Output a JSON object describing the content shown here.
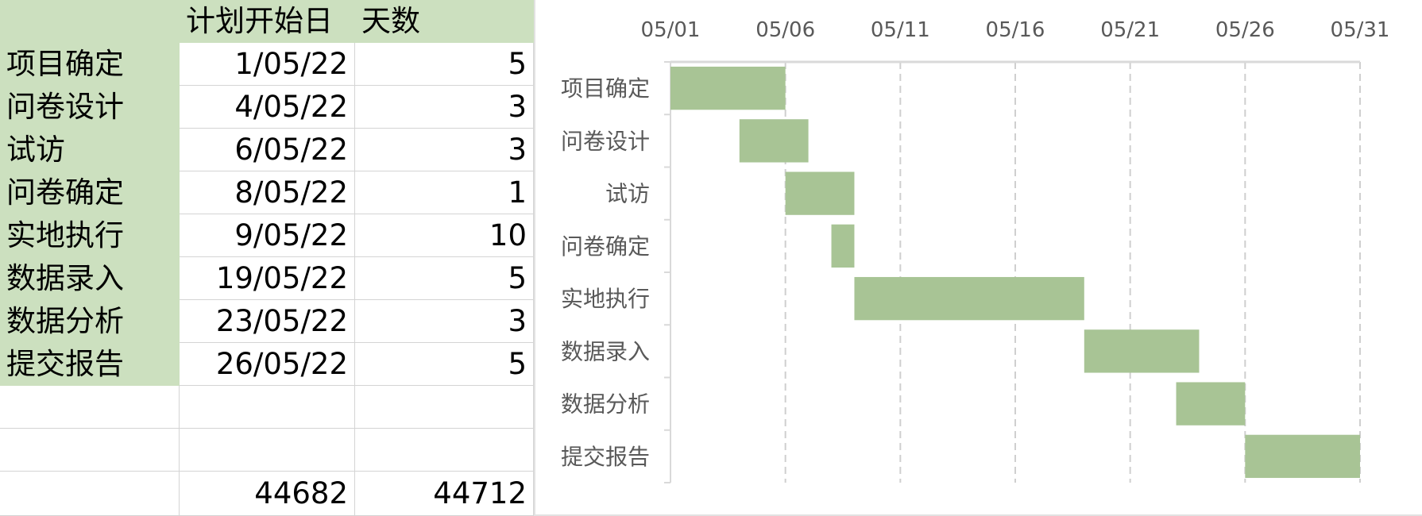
{
  "sheet": {
    "header": [
      "",
      "计划开始日",
      "天数"
    ],
    "rows": [
      {
        "task": "项目确定",
        "start": "1/05/22",
        "days": "5"
      },
      {
        "task": "问卷设计",
        "start": "4/05/22",
        "days": "3"
      },
      {
        "task": "试访",
        "start": "6/05/22",
        "days": "3"
      },
      {
        "task": "问卷确定",
        "start": "8/05/22",
        "days": "1"
      },
      {
        "task": "实地执行",
        "start": "9/05/22",
        "days": "10"
      },
      {
        "task": "数据录入",
        "start": "19/05/22",
        "days": "5"
      },
      {
        "task": "数据分析",
        "start": "23/05/22",
        "days": "3"
      },
      {
        "task": "提交报告",
        "start": "26/05/22",
        "days": "5"
      }
    ],
    "footer": {
      "start_serial": "44682",
      "end_serial": "44712"
    }
  },
  "colors": {
    "bar": "#a8c495",
    "header_bg": "#cce0bf",
    "grid": "#cfcfcf",
    "axis_text": "#595959"
  },
  "chart_data": {
    "type": "bar",
    "orientation": "horizontal-gantt",
    "categories": [
      "项目确定",
      "问卷设计",
      "试访",
      "问卷确定",
      "实地执行",
      "数据录入",
      "数据分析",
      "提交报告"
    ],
    "series": [
      {
        "role": "start",
        "hidden": true,
        "values": [
          "2022-05-01",
          "2022-05-04",
          "2022-05-06",
          "2022-05-08",
          "2022-05-09",
          "2022-05-19",
          "2022-05-23",
          "2022-05-26"
        ]
      },
      {
        "role": "duration_days",
        "values": [
          5,
          3,
          3,
          1,
          10,
          5,
          3,
          5
        ]
      }
    ],
    "x_axis": {
      "min": "2022-05-01",
      "max": "2022-05-31",
      "position": "top",
      "ticks": [
        "2022-05-01",
        "2022-05-06",
        "2022-05-11",
        "2022-05-16",
        "2022-05-21",
        "2022-05-26",
        "2022-05-31"
      ],
      "tick_labels": [
        "05/01",
        "05/06",
        "05/11",
        "05/16",
        "05/21",
        "05/26",
        "05/31"
      ]
    },
    "grid": true,
    "gridline_style": "dashed",
    "legend": "none"
  }
}
